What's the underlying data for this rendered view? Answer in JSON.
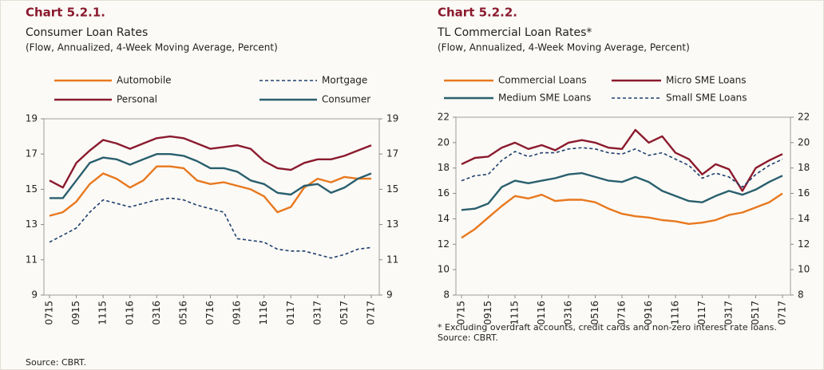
{
  "chart_data": [
    {
      "type": "line",
      "title": "Chart 5.2.1.",
      "subtitle": "Consumer Loan Rates",
      "units": "(Flow, Annualized, 4-Week Moving Average, Percent)",
      "categories": [
        "0715",
        null,
        "0915",
        null,
        "1115",
        null,
        "0116",
        null,
        "0316",
        null,
        "0516",
        null,
        "0716",
        null,
        "0916",
        null,
        "1116",
        null,
        "0117",
        null,
        "0317",
        null,
        "0517",
        null,
        "0717"
      ],
      "series": [
        {
          "name": "Automobile",
          "color": "#e8781e",
          "dash": false,
          "values": [
            13.5,
            13.7,
            14.3,
            15.3,
            15.9,
            15.6,
            15.1,
            15.5,
            16.3,
            16.3,
            16.2,
            15.5,
            15.3,
            15.4,
            15.2,
            15.0,
            14.6,
            13.7,
            14.0,
            15.1,
            15.6,
            15.4,
            15.7,
            15.6,
            15.6
          ]
        },
        {
          "name": "Mortgage",
          "color": "#1f3f6e",
          "dash": true,
          "values": [
            12.0,
            12.4,
            12.8,
            13.7,
            14.4,
            14.2,
            14.0,
            14.2,
            14.4,
            14.5,
            14.4,
            14.1,
            13.9,
            13.7,
            12.2,
            12.1,
            12.0,
            11.6,
            11.5,
            11.5,
            11.3,
            11.1,
            11.3,
            11.6,
            11.7
          ]
        },
        {
          "name": "Personal",
          "color": "#8b1a2e",
          "dash": false,
          "values": [
            15.5,
            15.1,
            16.5,
            17.2,
            17.8,
            17.6,
            17.3,
            17.6,
            17.9,
            18.0,
            17.9,
            17.6,
            17.3,
            17.4,
            17.5,
            17.3,
            16.6,
            16.2,
            16.1,
            16.5,
            16.7,
            16.7,
            16.9,
            17.2,
            17.5
          ]
        },
        {
          "name": "Consumer",
          "color": "#2a5f6e",
          "dash": false,
          "values": [
            14.5,
            14.5,
            15.5,
            16.5,
            16.8,
            16.7,
            16.4,
            16.7,
            17.0,
            17.0,
            16.9,
            16.6,
            16.2,
            16.2,
            16.0,
            15.5,
            15.3,
            14.8,
            14.7,
            15.2,
            15.3,
            14.8,
            15.1,
            15.6,
            15.9
          ]
        }
      ],
      "ylim": [
        9,
        19
      ],
      "yticks": [
        9,
        11,
        13,
        15,
        17,
        19
      ],
      "mirror_y": true,
      "source": "Source: CBRT."
    },
    {
      "type": "line",
      "title": "Chart 5.2.2.",
      "subtitle": "TL Commercial Loan Rates*",
      "units": "(Flow, Annualized, 4-Week Moving Average, Percent)",
      "categories": [
        "0715",
        null,
        "0915",
        null,
        "1115",
        null,
        "0116",
        null,
        "0316",
        null,
        "0516",
        null,
        "0716",
        null,
        "0916",
        null,
        "1116",
        null,
        "0117",
        null,
        "0317",
        null,
        "0517",
        null,
        "0717"
      ],
      "series": [
        {
          "name": "Commercial Loans",
          "color": "#e8781e",
          "dash": false,
          "values": [
            12.5,
            13.2,
            14.1,
            15.0,
            15.8,
            15.6,
            15.9,
            15.4,
            15.5,
            15.5,
            15.3,
            14.8,
            14.4,
            14.2,
            14.1,
            13.9,
            13.8,
            13.6,
            13.7,
            13.9,
            14.3,
            14.5,
            14.9,
            15.3,
            16.0
          ]
        },
        {
          "name": "Micro SME Loans",
          "color": "#8b1a2e",
          "dash": false,
          "values": [
            18.3,
            18.8,
            18.9,
            19.6,
            20.0,
            19.5,
            19.8,
            19.4,
            20.0,
            20.2,
            20.0,
            19.6,
            19.5,
            21.0,
            20.0,
            20.5,
            19.2,
            18.7,
            17.5,
            18.3,
            17.9,
            16.2,
            18.0,
            18.6,
            19.1
          ]
        },
        {
          "name": "Medium SME Loans",
          "color": "#2a5f6e",
          "dash": false,
          "values": [
            14.7,
            14.8,
            15.2,
            16.5,
            17.0,
            16.8,
            17.0,
            17.2,
            17.5,
            17.6,
            17.3,
            17.0,
            16.9,
            17.3,
            16.9,
            16.2,
            15.8,
            15.4,
            15.3,
            15.8,
            16.2,
            15.9,
            16.3,
            16.9,
            17.4
          ]
        },
        {
          "name": "Small SME Loans",
          "color": "#1f3f6e",
          "dash": true,
          "values": [
            17.0,
            17.4,
            17.5,
            18.6,
            19.3,
            18.9,
            19.2,
            19.2,
            19.5,
            19.6,
            19.5,
            19.2,
            19.1,
            19.5,
            19.0,
            19.2,
            18.7,
            18.2,
            17.2,
            17.6,
            17.3,
            16.5,
            17.5,
            18.2,
            18.7
          ]
        }
      ],
      "ylim": [
        8,
        22
      ],
      "yticks": [
        8,
        10,
        12,
        14,
        16,
        18,
        20,
        22
      ],
      "mirror_y": true,
      "note": "* Excluding overdraft accounts, credit cards and non-zero interest rate loans.",
      "source": "Source: CBRT."
    }
  ]
}
